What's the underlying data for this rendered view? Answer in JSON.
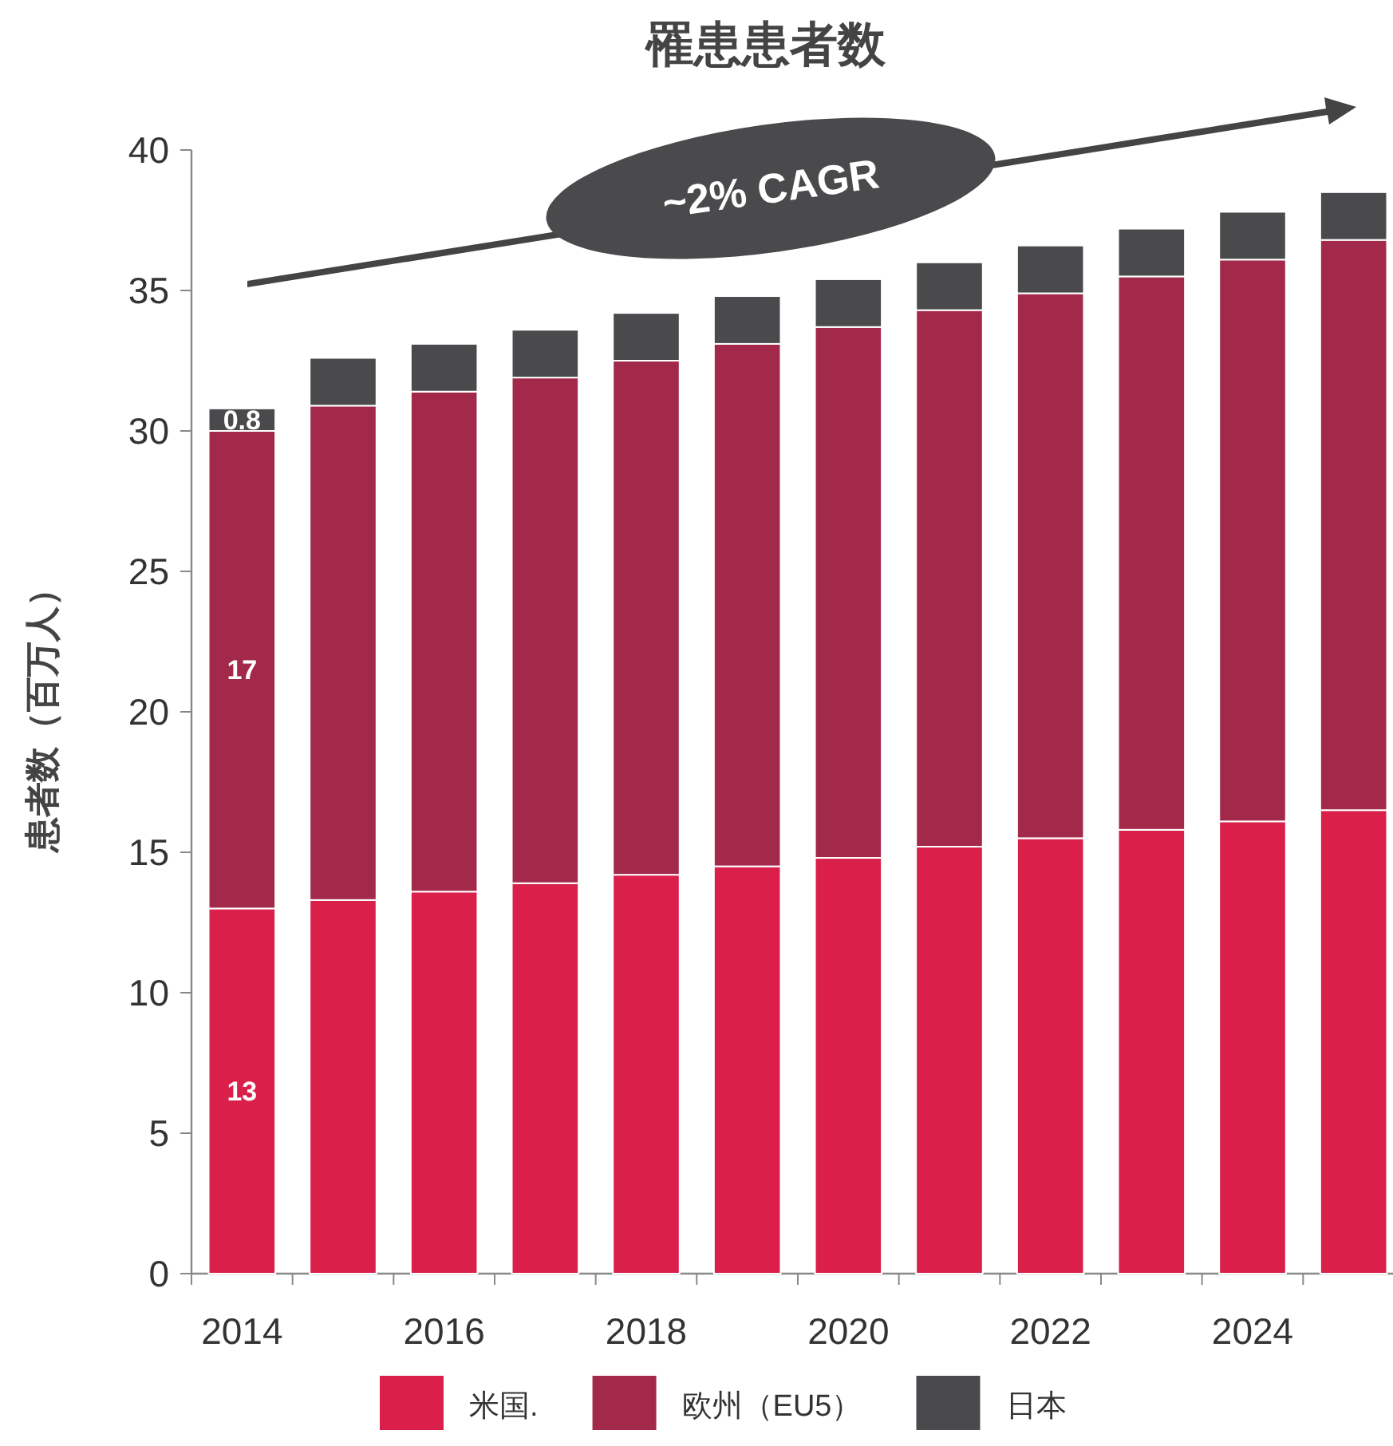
{
  "chart_data": {
    "type": "bar",
    "stacked": true,
    "title": "罹患患者数",
    "ylabel": "患者数（百万人）",
    "categories": [
      "2014",
      null,
      "2016",
      null,
      "2018",
      null,
      "2020",
      null,
      "2022",
      null,
      "2024",
      null
    ],
    "series": [
      {
        "name": "米国.",
        "color": "#d91f4a",
        "values": [
          13,
          13.3,
          13.6,
          13.9,
          14.2,
          14.5,
          14.8,
          15.2,
          15.5,
          15.8,
          16.1,
          16.5
        ],
        "value_labels": [
          "13",
          null,
          null,
          null,
          null,
          null,
          null,
          null,
          null,
          null,
          null,
          null
        ]
      },
      {
        "name": "欧州（EU5）",
        "color": "#a3294b",
        "values": [
          17,
          17.6,
          17.8,
          18.0,
          18.3,
          18.6,
          18.9,
          19.1,
          19.4,
          19.7,
          20.0,
          20.3
        ],
        "value_labels": [
          "17",
          null,
          null,
          null,
          null,
          null,
          null,
          null,
          null,
          null,
          null,
          null
        ]
      },
      {
        "name": "日本",
        "color": "#4a4a4c",
        "values": [
          0.8,
          1.7,
          1.7,
          1.7,
          1.7,
          1.7,
          1.7,
          1.7,
          1.7,
          1.7,
          1.7,
          1.7
        ],
        "value_labels": [
          "0.8",
          null,
          null,
          null,
          null,
          null,
          null,
          null,
          null,
          null,
          null,
          null
        ]
      }
    ],
    "ylim": [
      0,
      40
    ],
    "yticks": [
      0,
      5,
      10,
      15,
      20,
      25,
      30,
      35,
      40
    ],
    "legend": "bottom",
    "annotations": [
      "~2% CAGR"
    ]
  }
}
